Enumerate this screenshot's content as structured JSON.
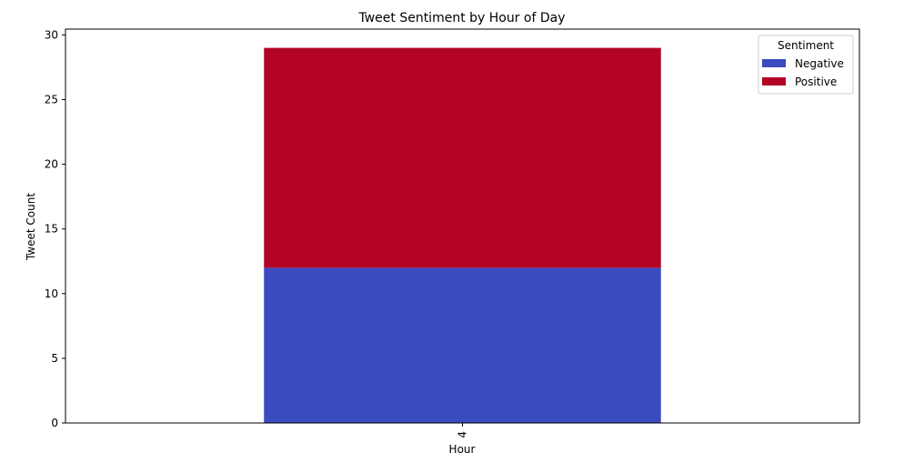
{
  "chart_data": {
    "type": "bar",
    "stacked": true,
    "title": "Tweet Sentiment by Hour of Day",
    "xlabel": "Hour",
    "ylabel": "Tweet Count",
    "categories": [
      "4"
    ],
    "ylim": [
      0,
      30.45
    ],
    "yticks": [
      0,
      5,
      10,
      15,
      20,
      25,
      30
    ],
    "yticklabels": [
      "0",
      "5",
      "10",
      "15",
      "20",
      "25",
      "30"
    ],
    "legend": {
      "title": "Sentiment",
      "placement": "top-right"
    },
    "series": [
      {
        "name": "Negative",
        "values": [
          12
        ],
        "color": "#3b4cc0"
      },
      {
        "name": "Positive",
        "values": [
          17
        ],
        "color": "#b40426"
      }
    ],
    "grid": false
  }
}
